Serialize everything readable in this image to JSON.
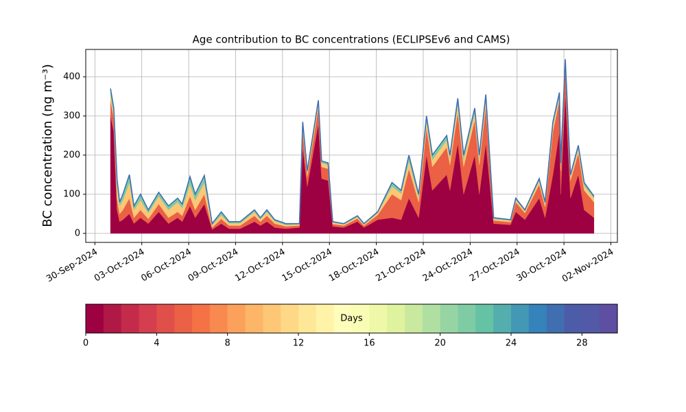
{
  "chart_data": {
    "type": "stacked_area",
    "title": "Age contribution to BC concentrations (ECLIPSEv6 and CAMS)",
    "y_label": "BC concentration (ng m⁻³)",
    "x": [
      "2024-10-01 00:00",
      "2024-10-01 05:00",
      "2024-10-01 10:00",
      "2024-10-01 14:00",
      "2024-10-01 19:00",
      "2024-10-02 05:00",
      "2024-10-02 12:00",
      "2024-10-02 22:00",
      "2024-10-03 10:00",
      "2024-10-04 02:00",
      "2024-10-04 17:00",
      "2024-10-05 07:00",
      "2024-10-05 14:00",
      "2024-10-06 02:00",
      "2024-10-06 10:00",
      "2024-10-07 00:00",
      "2024-10-07 12:00",
      "2024-10-08 02:00",
      "2024-10-08 14:00",
      "2024-10-09 07:00",
      "2024-10-10 05:00",
      "2024-10-10 14:00",
      "2024-10-11 00:00",
      "2024-10-11 12:00",
      "2024-10-12 05:00",
      "2024-10-13 02:00",
      "2024-10-13 07:00",
      "2024-10-13 14:00",
      "2024-10-14 07:00",
      "2024-10-14 12:00",
      "2024-10-14 22:00",
      "2024-10-15 05:00",
      "2024-10-15 22:00",
      "2024-10-16 19:00",
      "2024-10-17 05:00",
      "2024-10-18 02:00",
      "2024-10-19 00:00",
      "2024-10-19 14:00",
      "2024-10-20 02:00",
      "2024-10-20 17:00",
      "2024-10-21 05:00",
      "2024-10-21 14:00",
      "2024-10-22 12:00",
      "2024-10-22 17:00",
      "2024-10-23 05:00",
      "2024-10-23 14:00",
      "2024-10-24 07:00",
      "2024-10-24 14:00",
      "2024-10-25 00:00",
      "2024-10-25 12:00",
      "2024-10-26 14:00",
      "2024-10-26 22:00",
      "2024-10-27 12:00",
      "2024-10-28 10:00",
      "2024-10-28 19:00",
      "2024-10-29 07:00",
      "2024-10-29 17:00",
      "2024-10-29 19:00",
      "2024-10-30 02:00",
      "2024-10-30 10:00",
      "2024-10-30 22:00",
      "2024-10-31 07:00",
      "2024-10-31 22:00"
    ],
    "series": [
      {
        "color": "#9e0142",
        "values": [
          300,
          260,
          60,
          30,
          35,
          50,
          25,
          40,
          25,
          55,
          25,
          40,
          30,
          70,
          40,
          75,
          10,
          25,
          12,
          12,
          30,
          20,
          30,
          15,
          12,
          15,
          220,
          120,
          280,
          140,
          135,
          18,
          15,
          30,
          15,
          35,
          40,
          35,
          90,
          40,
          200,
          110,
          150,
          110,
          230,
          100,
          200,
          100,
          230,
          25,
          22,
          55,
          35,
          90,
          40,
          150,
          260,
          100,
          360,
          90,
          150,
          60,
          40
        ]
      },
      {
        "color": "#ea6145",
        "values": [
          40,
          35,
          30,
          20,
          25,
          40,
          15,
          20,
          12,
          20,
          15,
          15,
          15,
          25,
          20,
          25,
          5,
          12,
          8,
          8,
          15,
          10,
          15,
          10,
          6,
          5,
          40,
          25,
          40,
          30,
          30,
          6,
          5,
          8,
          5,
          12,
          60,
          50,
          75,
          40,
          70,
          60,
          70,
          65,
          80,
          70,
          90,
          75,
          95,
          8,
          7,
          25,
          17,
          35,
          28,
          110,
          80,
          60,
          65,
          45,
          55,
          50,
          40
        ]
      },
      {
        "color": "#fdc776",
        "values": [
          15,
          13,
          30,
          20,
          25,
          40,
          20,
          25,
          15,
          20,
          20,
          25,
          20,
          30,
          25,
          30,
          6,
          10,
          6,
          6,
          10,
          6,
          10,
          6,
          4,
          3,
          15,
          10,
          12,
          10,
          10,
          4,
          3,
          4,
          3,
          5,
          20,
          17,
          20,
          12,
          18,
          18,
          18,
          15,
          20,
          18,
          18,
          15,
          18,
          4,
          4,
          6,
          5,
          10,
          8,
          15,
          12,
          12,
          12,
          10,
          12,
          12,
          10
        ]
      },
      {
        "color": "#7ecba4",
        "values": [
          15,
          12,
          20,
          10,
          15,
          20,
          10,
          15,
          8,
          10,
          10,
          10,
          10,
          20,
          15,
          18,
          4,
          8,
          4,
          4,
          5,
          4,
          5,
          4,
          3,
          2,
          10,
          5,
          8,
          5,
          5,
          2,
          2,
          3,
          2,
          3,
          10,
          8,
          15,
          8,
          12,
          12,
          12,
          10,
          15,
          12,
          12,
          10,
          12,
          3,
          2,
          4,
          3,
          5,
          4,
          10,
          8,
          8,
          8,
          5,
          8,
          8,
          5
        ]
      }
    ],
    "outline_color": "#3f6fb1",
    "xlim": [
      "2024-09-29 10:00",
      "2024-11-02 10:00"
    ],
    "xticks": [
      {
        "value": "2024-09-30 00:00",
        "label": "30-Sep-2024"
      },
      {
        "value": "2024-10-03 00:00",
        "label": "03-Oct-2024"
      },
      {
        "value": "2024-10-06 00:00",
        "label": "06-Oct-2024"
      },
      {
        "value": "2024-10-09 00:00",
        "label": "09-Oct-2024"
      },
      {
        "value": "2024-10-12 00:00",
        "label": "12-Oct-2024"
      },
      {
        "value": "2024-10-15 00:00",
        "label": "15-Oct-2024"
      },
      {
        "value": "2024-10-18 00:00",
        "label": "18-Oct-2024"
      },
      {
        "value": "2024-10-21 00:00",
        "label": "21-Oct-2024"
      },
      {
        "value": "2024-10-24 00:00",
        "label": "24-Oct-2024"
      },
      {
        "value": "2024-10-27 00:00",
        "label": "27-Oct-2024"
      },
      {
        "value": "2024-10-30 00:00",
        "label": "30-Oct-2024"
      },
      {
        "value": "2024-11-02 00:00",
        "label": "02-Nov-2024"
      }
    ],
    "ylim": [
      -23,
      470
    ],
    "yticks": [
      0,
      100,
      200,
      300,
      400
    ],
    "grid": true,
    "colorbar": {
      "label": "Days",
      "lim": [
        0,
        30
      ],
      "ticks": [
        0,
        4,
        8,
        12,
        16,
        20,
        24,
        28
      ],
      "colors": [
        "#9e0142",
        "#b01846",
        "#c42b4b",
        "#d53e4f",
        "#e04f4a",
        "#ea6145",
        "#f47245",
        "#f88a50",
        "#fba15b",
        "#fdb567",
        "#fdc776",
        "#fed886",
        "#fee797",
        "#fff3a8",
        "#fffdbb",
        "#f8fcb5",
        "#eef8a8",
        "#dff29e",
        "#c9e99e",
        "#b0dfa2",
        "#97d4a4",
        "#7ecba4",
        "#66c2a5",
        "#53aead",
        "#4298b5",
        "#3682ba",
        "#3f6fb1",
        "#4c5ca8",
        "#5259a6",
        "#5e4fa2"
      ]
    }
  }
}
